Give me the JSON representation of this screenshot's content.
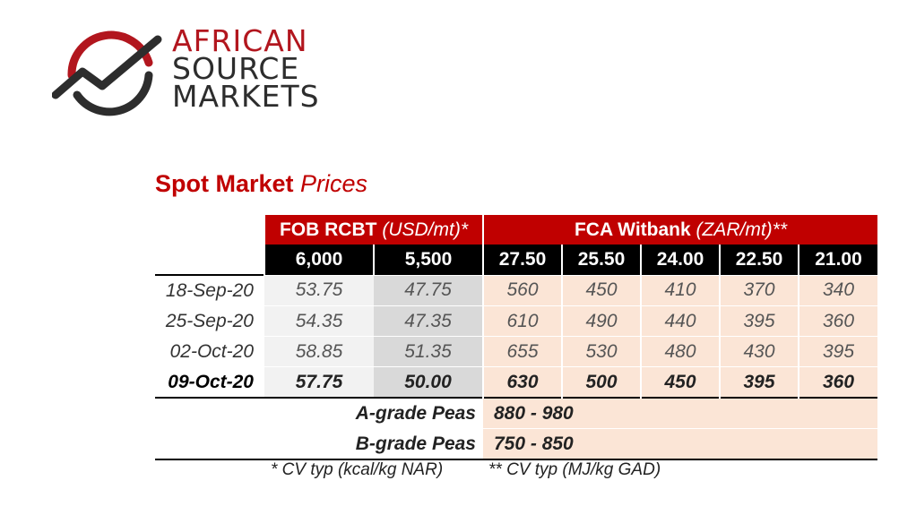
{
  "logo": {
    "line1": "AFRICAN",
    "line2": "SOURCE",
    "line3": "MARKETS",
    "colors": {
      "accent": "#b2161e",
      "dark": "#2d2d2d"
    }
  },
  "title": {
    "bold": "Spot Market",
    "italic": "Prices"
  },
  "table": {
    "groups": [
      {
        "name": "FOB RCBT",
        "unit": "(USD/mt)*"
      },
      {
        "name": "FCA Witbank",
        "unit": "(ZAR/mt)**"
      }
    ],
    "grades": [
      "6,000",
      "5,500",
      "27.50",
      "25.50",
      "24.00",
      "22.50",
      "21.00"
    ],
    "rows": [
      {
        "date": "18-Sep-20",
        "values": [
          "53.75",
          "47.75",
          "560",
          "450",
          "410",
          "370",
          "340"
        ]
      },
      {
        "date": "25-Sep-20",
        "values": [
          "54.35",
          "47.35",
          "610",
          "490",
          "440",
          "395",
          "360"
        ]
      },
      {
        "date": "02-Oct-20",
        "values": [
          "58.85",
          "51.35",
          "655",
          "530",
          "480",
          "430",
          "395"
        ]
      },
      {
        "date": "09-Oct-20",
        "values": [
          "57.75",
          "50.00",
          "630",
          "500",
          "450",
          "395",
          "360"
        ]
      }
    ],
    "peas": [
      {
        "label": "A-grade Peas",
        "value": "880 - 980"
      },
      {
        "label": "B-grade Peas",
        "value": "750 - 850"
      }
    ]
  },
  "footnotes": {
    "usd": "* CV typ (kcal/kg NAR)",
    "zar": "** CV typ (MJ/kg GAD)"
  },
  "colors": {
    "header_red": "#c00000",
    "peach": "#fbe5d6",
    "grey_light": "#f2f2f2",
    "grey_dark": "#d9d9d9"
  }
}
